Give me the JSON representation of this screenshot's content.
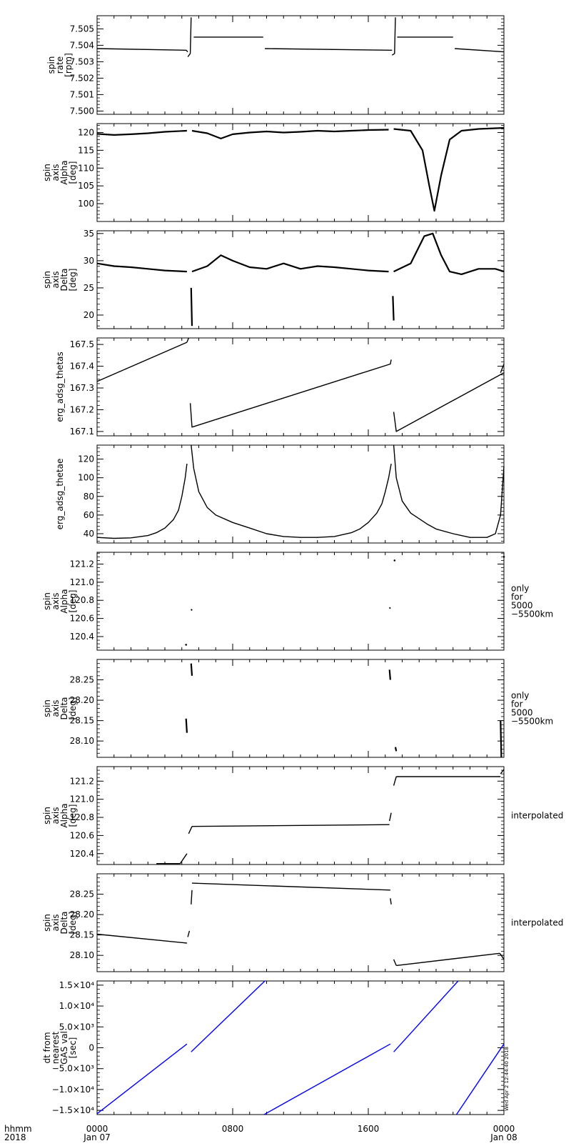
{
  "footer": {
    "x_tick_labels": [
      {
        "line1": "0000",
        "line2": "Jan 07"
      },
      {
        "line1": "0800",
        "line2": ""
      },
      {
        "line1": "1600",
        "line2": ""
      },
      {
        "line1": "0000",
        "line2": "Jan 08"
      }
    ],
    "corner_label": {
      "line1": "hhmm",
      "line2": "2018"
    },
    "timestamp": "Wed Apr  2 12:44:40 2018"
  },
  "chart_data": [
    {
      "type": "line",
      "id": "spin_rate",
      "ylabel": [
        "spin",
        "rate",
        "[rpm]"
      ],
      "ylim": [
        7.4998,
        7.5058
      ],
      "yticks": [
        7.5,
        7.501,
        7.502,
        7.503,
        7.504,
        7.505
      ],
      "ydec": 3,
      "sidenote": [],
      "series": [
        {
          "name": "",
          "color": "#000000",
          "segments": [
            {
              "x": [
                0,
                5.25,
                5.35
              ],
              "y": [
                7.5038,
                7.5037,
                7.5036
              ]
            },
            {
              "x": [
                5.35,
                5.5,
                5.55
              ],
              "y": [
                7.5033,
                7.5035,
                7.5057
              ]
            },
            {
              "x": [
                5.7,
                9.8
              ],
              "y": [
                7.5045,
                7.5045
              ]
            },
            {
              "x": [
                9.9,
                17.4
              ],
              "y": [
                7.5038,
                7.5037
              ]
            },
            {
              "x": [
                17.4,
                17.55,
                17.6
              ],
              "y": [
                7.5034,
                7.5035,
                7.5057
              ]
            },
            {
              "x": [
                17.7,
                21.0
              ],
              "y": [
                7.5045,
                7.5045
              ]
            },
            {
              "x": [
                21.1,
                24
              ],
              "y": [
                7.5038,
                7.5036
              ]
            }
          ]
        }
      ]
    },
    {
      "type": "scatter",
      "id": "spin_axis_alpha",
      "ylabel": [
        "spin",
        "axis",
        "Alpha",
        "[deg]"
      ],
      "ylim": [
        95,
        122.5
      ],
      "yticks": [
        100,
        105,
        110,
        115,
        120
      ],
      "ydec": 0,
      "sidenote": [],
      "series": [
        {
          "name": "",
          "color": "#000000",
          "segments": [
            {
              "x": [
                0,
                1,
                2,
                3,
                4,
                5.3
              ],
              "y": [
                119.6,
                119.3,
                119.5,
                119.8,
                120.2,
                120.5
              ]
            },
            {
              "x": [
                5.6,
                6.5,
                7.3,
                8,
                9,
                10,
                11,
                12,
                13,
                14,
                15,
                16,
                17.2
              ],
              "y": [
                120.5,
                119.8,
                118.3,
                119.5,
                120.0,
                120.3,
                120.0,
                120.2,
                120.5,
                120.3,
                120.5,
                120.7,
                120.8
              ]
            },
            {
              "x": [
                17.5,
                18.5,
                19.2,
                19.6,
                19.9,
                20.3,
                20.8,
                21.5,
                22.5,
                23.5,
                24
              ],
              "y": [
                121.0,
                120.5,
                115.0,
                105.0,
                98.0,
                108.0,
                118.0,
                120.5,
                121.0,
                121.2,
                121.3
              ]
            }
          ]
        }
      ]
    },
    {
      "type": "scatter",
      "id": "spin_axis_delta",
      "ylabel": [
        "spin",
        "axis",
        "Delta",
        "[deg]"
      ],
      "ylim": [
        17.5,
        35.5
      ],
      "yticks": [
        20,
        25,
        30,
        35
      ],
      "ydec": 0,
      "sidenote": [],
      "series": [
        {
          "name": "",
          "color": "#000000",
          "segments": [
            {
              "x": [
                0,
                1,
                2,
                3,
                4,
                5.3
              ],
              "y": [
                29.5,
                29.0,
                28.8,
                28.5,
                28.2,
                28.0
              ]
            },
            {
              "x": [
                5.6,
                6.5,
                7.3,
                8,
                9,
                10,
                11,
                12,
                13,
                14,
                15,
                16,
                17.2
              ],
              "y": [
                28.0,
                29.0,
                31.0,
                30.0,
                28.8,
                28.5,
                29.5,
                28.5,
                29.0,
                28.8,
                28.5,
                28.2,
                28.0
              ]
            },
            {
              "x": [
                17.5,
                18.5,
                19.3,
                19.8,
                20.3,
                20.8,
                21.5,
                22.5,
                23.5,
                24
              ],
              "y": [
                28.0,
                29.5,
                34.5,
                35.0,
                31.0,
                28.0,
                27.5,
                28.5,
                28.5,
                28.0
              ]
            },
            {
              "x": [
                5.55,
                5.6
              ],
              "y": [
                25.0,
                18.0
              ]
            },
            {
              "x": [
                17.45,
                17.5
              ],
              "y": [
                23.5,
                19.0
              ]
            }
          ]
        }
      ]
    },
    {
      "type": "line",
      "id": "erg_adsg_thetas",
      "ylabel": [
        "erg_adsg_thetas"
      ],
      "ylim": [
        167.08,
        167.53
      ],
      "yticks": [
        167.1,
        167.2,
        167.3,
        167.4,
        167.5
      ],
      "ydec": 1,
      "sidenote": [],
      "series": [
        {
          "name": "",
          "color": "#000000",
          "segments": [
            {
              "x": [
                0,
                5.3
              ],
              "y": [
                167.33,
                167.51
              ]
            },
            {
              "x": [
                5.3,
                5.4
              ],
              "y": [
                167.51,
                167.53
              ]
            },
            {
              "x": [
                5.5,
                5.6,
                17.3,
                17.35
              ],
              "y": [
                167.23,
                167.12,
                167.41,
                167.43
              ]
            },
            {
              "x": [
                17.5,
                17.65,
                24
              ],
              "y": [
                167.19,
                167.1,
                167.37
              ]
            },
            {
              "x": [
                23.8,
                24
              ],
              "y": [
                167.37,
                167.41
              ]
            }
          ]
        }
      ]
    },
    {
      "type": "line",
      "id": "erg_adsg_thetae",
      "ylabel": [
        "erg_adsg_thetae"
      ],
      "ylim": [
        30,
        135
      ],
      "yticks": [
        40,
        60,
        80,
        100,
        120
      ],
      "ydec": 0,
      "sidenote": [],
      "series": [
        {
          "name": "",
          "color": "#000000",
          "segments": [
            {
              "x": [
                0,
                1,
                2,
                3,
                3.5,
                4,
                4.5,
                4.8,
                5.0,
                5.2,
                5.3
              ],
              "y": [
                36,
                35,
                35.5,
                38,
                41,
                46,
                55,
                65,
                80,
                100,
                115
              ]
            },
            {
              "x": [
                5.55,
                5.7,
                6.0,
                6.5,
                7.0,
                8,
                9,
                10,
                11,
                12,
                13,
                14,
                15,
                15.5,
                16,
                16.5,
                16.8,
                17.0,
                17.2,
                17.35
              ],
              "y": [
                135,
                110,
                85,
                68,
                60,
                52,
                46,
                40,
                37,
                36,
                36,
                37,
                41,
                45,
                52,
                62,
                72,
                85,
                100,
                115
              ]
            },
            {
              "x": [
                17.5,
                17.65,
                18.0,
                18.5,
                19,
                19.5,
                20,
                21,
                22,
                23,
                23.5,
                23.8,
                24
              ],
              "y": [
                135,
                100,
                75,
                62,
                56,
                50,
                45,
                40,
                36,
                36,
                40,
                60,
                112
              ]
            }
          ]
        }
      ]
    },
    {
      "type": "scatter",
      "id": "spin_axis_alpha_filtered",
      "ylabel": [
        "spin",
        "axis",
        "Alpha",
        "[deg]"
      ],
      "ylim": [
        120.25,
        121.33
      ],
      "yticks": [
        120.4,
        120.6,
        120.8,
        121.0,
        121.2
      ],
      "ydec": 1,
      "sidenote": [
        "only",
        "for",
        "5000",
        "−5500km"
      ],
      "series": [
        {
          "name": "",
          "color": "#000000",
          "segments": [
            {
              "x": [
                5.55,
                5.6
              ],
              "y": [
                120.69,
                120.7
              ]
            },
            {
              "x": [
                17.25,
                17.3
              ],
              "y": [
                120.71,
                120.72
              ]
            },
            {
              "x": [
                17.55
              ],
              "y": [
                121.24
              ]
            },
            {
              "x": [
                5.25
              ],
              "y": [
                120.31
              ]
            },
            {
              "x": [
                24
              ],
              "y": [
                121.28
              ]
            }
          ]
        }
      ]
    },
    {
      "type": "scatter",
      "id": "spin_axis_delta_filtered",
      "ylabel": [
        "spin",
        "axis",
        "Delta",
        "[deg]"
      ],
      "ylim": [
        28.06,
        28.3
      ],
      "yticks": [
        28.1,
        28.15,
        28.2,
        28.25
      ],
      "ydec": 2,
      "sidenote": [
        "only",
        "for",
        "5000",
        "−5500km"
      ],
      "series": [
        {
          "name": "",
          "color": "#000000",
          "segments": [
            {
              "x": [
                5.25,
                5.3
              ],
              "y": [
                28.155,
                28.12
              ]
            },
            {
              "x": [
                5.55,
                5.6
              ],
              "y": [
                28.29,
                28.26
              ]
            },
            {
              "x": [
                17.25,
                17.3
              ],
              "y": [
                28.275,
                28.25
              ]
            },
            {
              "x": [
                17.6,
                17.65
              ],
              "y": [
                28.085,
                28.075
              ]
            },
            {
              "x": [
                23.8,
                23.85
              ],
              "y": [
                28.15,
                28.06
              ]
            }
          ]
        }
      ]
    },
    {
      "type": "line",
      "id": "spin_axis_alpha_interp",
      "ylabel": [
        "spin",
        "axis",
        "Alpha",
        "[deg]"
      ],
      "ylim": [
        120.28,
        121.36
      ],
      "yticks": [
        120.4,
        120.6,
        120.8,
        121.0,
        121.2
      ],
      "ydec": 1,
      "sidenote": [
        "interpolated"
      ],
      "series": [
        {
          "name": "",
          "color": "#000000",
          "segments": [
            {
              "x": [
                3.5,
                4.9
              ],
              "y": [
                120.29,
                120.29
              ]
            },
            {
              "x": [
                4.9,
                5.3
              ],
              "y": [
                120.29,
                120.4
              ]
            },
            {
              "x": [
                5.4,
                5.6
              ],
              "y": [
                120.62,
                120.7
              ]
            },
            {
              "x": [
                5.6,
                17.25
              ],
              "y": [
                120.7,
                120.72
              ]
            },
            {
              "x": [
                17.25,
                17.35
              ],
              "y": [
                120.76,
                120.85
              ]
            },
            {
              "x": [
                17.5,
                17.65
              ],
              "y": [
                121.15,
                121.25
              ]
            },
            {
              "x": [
                17.65,
                23.8
              ],
              "y": [
                121.25,
                121.25
              ]
            },
            {
              "x": [
                23.8,
                24
              ],
              "y": [
                121.28,
                121.33
              ]
            }
          ]
        }
      ]
    },
    {
      "type": "line",
      "id": "spin_axis_delta_interp",
      "ylabel": [
        "spin",
        "axis",
        "Delta",
        "[deg]"
      ],
      "ylim": [
        28.06,
        28.3
      ],
      "yticks": [
        28.1,
        28.15,
        28.2,
        28.25
      ],
      "ydec": 2,
      "sidenote": [
        "interpolated"
      ],
      "series": [
        {
          "name": "",
          "color": "#000000",
          "segments": [
            {
              "x": [
                0,
                5.3
              ],
              "y": [
                28.152,
                28.13
              ]
            },
            {
              "x": [
                5.35,
                5.45
              ],
              "y": [
                28.145,
                28.16
              ]
            },
            {
              "x": [
                5.55,
                5.6
              ],
              "y": [
                28.225,
                28.26
              ]
            },
            {
              "x": [
                5.6,
                17.3
              ],
              "y": [
                28.277,
                28.26
              ]
            },
            {
              "x": [
                17.3,
                17.35
              ],
              "y": [
                28.24,
                28.225
              ]
            },
            {
              "x": [
                17.5,
                17.65
              ],
              "y": [
                28.09,
                28.075
              ]
            },
            {
              "x": [
                17.65,
                23.75
              ],
              "y": [
                28.075,
                28.105
              ]
            },
            {
              "x": [
                23.75,
                23.85,
                24
              ],
              "y": [
                28.105,
                28.1,
                28.09
              ]
            }
          ]
        }
      ]
    },
    {
      "type": "line",
      "id": "dt_nearest",
      "ylabel": [
        "dt from",
        "nearest",
        "GAS val",
        "[sec]"
      ],
      "ylim": [
        -16000,
        16000
      ],
      "yticks": [
        -15000,
        -10000,
        -5000,
        0,
        5000,
        10000,
        15000
      ],
      "ydec": 0,
      "sidenote": [],
      "ytick_labels": [
        "−1.5×10⁴",
        "−1.0×10⁴",
        "−5.0×10³",
        "0",
        "5.0×10³",
        "1.0×10⁴",
        "1.5×10⁴"
      ],
      "series": [
        {
          "name": "",
          "color": "#0000ff",
          "segments": [
            {
              "x": [
                0,
                5.3
              ],
              "y": [
                -15800,
                900
              ]
            },
            {
              "x": [
                5.55,
                9.9
              ],
              "y": [
                -1000,
                16000
              ]
            },
            {
              "x": [
                9.85,
                17.3
              ],
              "y": [
                -16000,
                900
              ]
            },
            {
              "x": [
                17.5,
                21.3
              ],
              "y": [
                -1000,
                16000
              ]
            },
            {
              "x": [
                21.2,
                24
              ],
              "y": [
                -16000,
                900
              ]
            }
          ]
        }
      ]
    }
  ]
}
